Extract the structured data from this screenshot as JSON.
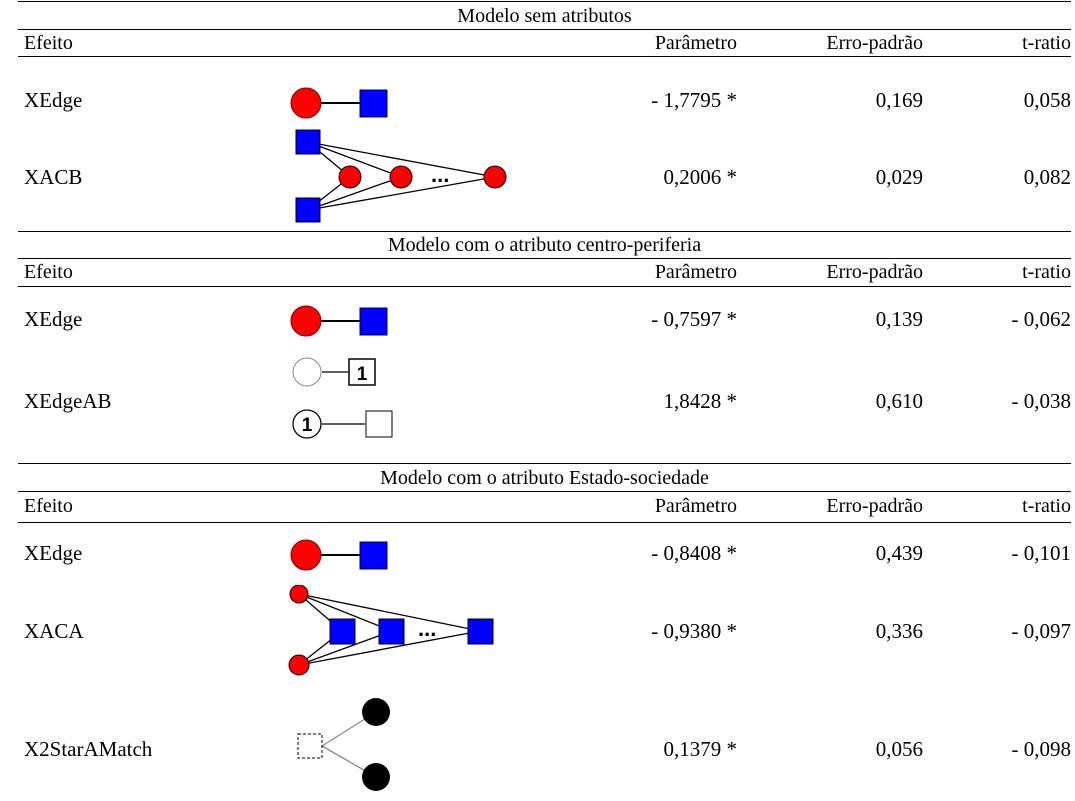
{
  "sections": [
    {
      "title": "Modelo sem atributos",
      "headers": {
        "effect": "Efeito",
        "param": "Parâmetro",
        "se": "Erro-padrão",
        "t": "t-ratio"
      },
      "rows": [
        {
          "effect": "XEdge",
          "param": "- 1,7795 *",
          "se": "0,169",
          "t": "0,058"
        },
        {
          "effect": "XACB",
          "param": "0,2006 *",
          "se": "0,029",
          "t": "0,082"
        }
      ]
    },
    {
      "title": "Modelo com o atributo centro-periferia",
      "headers": {
        "effect": "Efeito",
        "param": "Parâmetro",
        "se": "Erro-padrão",
        "t": "t-ratio"
      },
      "rows": [
        {
          "effect": "XEdge",
          "param": "- 0,7597 *",
          "se": "0,139",
          "t": "- 0,062"
        },
        {
          "effect": "XEdgeAB",
          "param": "1,8428 *",
          "se": "0,610",
          "t": "- 0,038"
        }
      ]
    },
    {
      "title": "Modelo com o atributo Estado-sociedade",
      "headers": {
        "effect": "Efeito",
        "param": "Parâmetro",
        "se": "Erro-padrão",
        "t": "t-ratio"
      },
      "rows": [
        {
          "effect": "XEdge",
          "param": "- 0,8408 *",
          "se": "0,439",
          "t": "- 0,101"
        },
        {
          "effect": "XACA",
          "param": "- 0,9380 *",
          "se": "0,336",
          "t": "- 0,097"
        },
        {
          "effect": "X2StarAMatch",
          "param": "0,1379 *",
          "se": "0,056",
          "t": "- 0,098"
        }
      ]
    }
  ],
  "diagram_text": {
    "ellipsis": "...",
    "attr_label": "1"
  },
  "colors": {
    "node_red": "#ff0000",
    "node_blue": "#0000ff",
    "node_black": "#000000",
    "line": "#000000"
  }
}
